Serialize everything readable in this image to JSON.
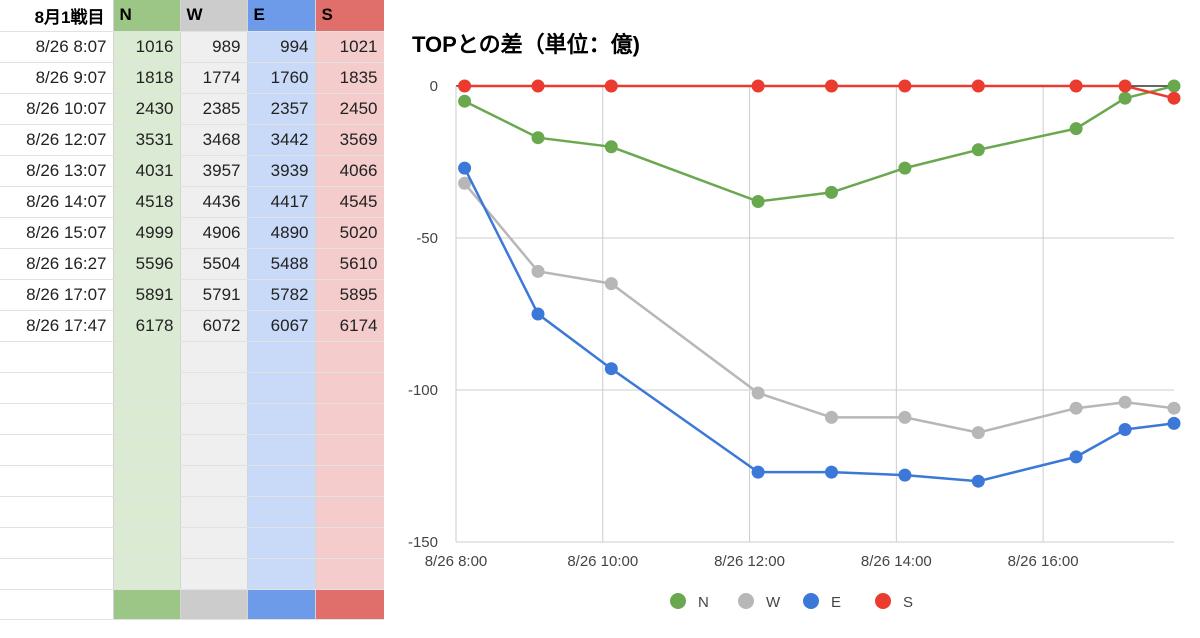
{
  "sheet": {
    "corner": "8月1戦目",
    "headers": [
      "N",
      "W",
      "E",
      "S"
    ],
    "rows": [
      {
        "time": "8/26 8:07",
        "values": [
          "1016",
          "989",
          "994",
          "1021"
        ]
      },
      {
        "time": "8/26 9:07",
        "values": [
          "1818",
          "1774",
          "1760",
          "1835"
        ]
      },
      {
        "time": "8/26 10:07",
        "values": [
          "2430",
          "2385",
          "2357",
          "2450"
        ]
      },
      {
        "time": "8/26 12:07",
        "values": [
          "3531",
          "3468",
          "3442",
          "3569"
        ]
      },
      {
        "time": "8/26 13:07",
        "values": [
          "4031",
          "3957",
          "3939",
          "4066"
        ]
      },
      {
        "time": "8/26 14:07",
        "values": [
          "4518",
          "4436",
          "4417",
          "4545"
        ]
      },
      {
        "time": "8/26 15:07",
        "values": [
          "4999",
          "4906",
          "4890",
          "5020"
        ]
      },
      {
        "time": "8/26 16:27",
        "values": [
          "5596",
          "5504",
          "5488",
          "5610"
        ]
      },
      {
        "time": "8/26 17:07",
        "values": [
          "5891",
          "5791",
          "5782",
          "5895"
        ]
      },
      {
        "time": "8/26 17:47",
        "values": [
          "6178",
          "6072",
          "6067",
          "6174"
        ]
      }
    ],
    "colors": {
      "N": "#9cc685",
      "W": "#cccccc",
      "E": "#6d9bea",
      "S": "#e06f6b"
    }
  },
  "chart_data": {
    "type": "line",
    "title": "TOPとの差（単位：億)",
    "xlabel": "",
    "ylabel": "",
    "x": [
      "8/26 8:07",
      "8/26 9:07",
      "8/26 10:07",
      "8/26 12:07",
      "8/26 13:07",
      "8/26 14:07",
      "8/26 15:07",
      "8/26 16:27",
      "8/26 17:07",
      "8/26 17:47"
    ],
    "xlim": [
      "8/26 8:00",
      "8/26 17:47"
    ],
    "ylim": [
      -150,
      0
    ],
    "yticks": [
      0,
      -50,
      -100,
      -150
    ],
    "yticklabels": [
      "0",
      "-50",
      "-100",
      "-150"
    ],
    "xticks": [
      "8/26 8:00",
      "8/26 10:00",
      "8/26 12:00",
      "8/26 14:00",
      "8/26 16:00"
    ],
    "xticklabels": [
      "8/26 8:00",
      "8/26 10:00",
      "8/26 12:00",
      "8/26 14:00",
      "8/26 16:00"
    ],
    "grid": true,
    "legend_position": "bottom",
    "series": [
      {
        "name": "N",
        "color": "#6aa84f",
        "values": [
          -5,
          -17,
          -20,
          -38,
          -35,
          -27,
          -21,
          -14,
          -4,
          0
        ]
      },
      {
        "name": "W",
        "color": "#b7b7b7",
        "values": [
          -32,
          -61,
          -65,
          -101,
          -109,
          -109,
          -114,
          -106,
          -104,
          -106
        ]
      },
      {
        "name": "E",
        "color": "#3c78d8",
        "values": [
          -27,
          -75,
          -93,
          -127,
          -127,
          -128,
          -130,
          -122,
          -113,
          -111
        ]
      },
      {
        "name": "S",
        "color": "#ea3b2e",
        "values": [
          0,
          0,
          0,
          0,
          0,
          0,
          0,
          0,
          0,
          -4
        ]
      }
    ]
  }
}
